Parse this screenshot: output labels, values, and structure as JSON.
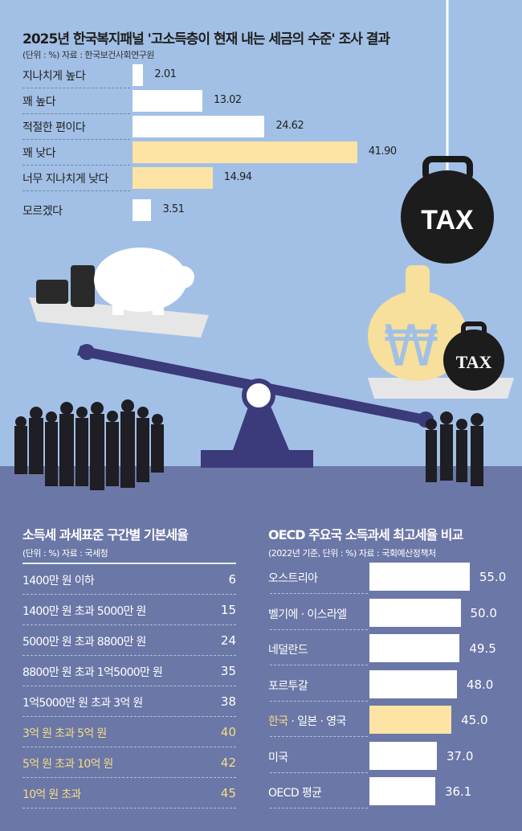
{
  "colors": {
    "top_bg": "#a2c0e6",
    "bottom_bg": "#6b77a6",
    "bar_white": "#ffffff",
    "bar_highlight": "#fde3a4",
    "text_highlight": "#f6dc86"
  },
  "illustration": {
    "weight_label": "TAX",
    "small_weight_label": "TAX",
    "money_bag_symbol": "₩"
  },
  "chart_data": [
    {
      "type": "bar",
      "orientation": "horizontal",
      "title": "2025년 한국복지패널  '고소득층이 현재 내는 세금의 수준' 조사 결과",
      "subtitle": "(단위 : %)  자료 : 한국보건사회연구원",
      "categories": [
        "지나치게 높다",
        "꽤 높다",
        "적절한 편이다",
        "꽤 낮다",
        "너무 지나치게 낮다",
        "모르겠다"
      ],
      "values": [
        2.01,
        13.02,
        24.62,
        41.9,
        14.94,
        3.51
      ],
      "labels": [
        "2.01",
        "13.02",
        "24.62",
        "41.90",
        "14.94",
        "3.51"
      ],
      "highlighted": [
        false,
        false,
        false,
        true,
        true,
        false
      ],
      "xlim": [
        0,
        45
      ]
    },
    {
      "type": "table",
      "title": "소득세 과세표준 구간별 기본세율",
      "subtitle": "(단위 : %)  자료 : 국세청",
      "rows": [
        {
          "bracket": "1400만 원 이하",
          "rate": "6",
          "highlighted": false
        },
        {
          "bracket": "1400만 원 초과 5000만 원",
          "rate": "15",
          "highlighted": false
        },
        {
          "bracket": "5000만 원 초과 8800만 원",
          "rate": "24",
          "highlighted": false
        },
        {
          "bracket": "8800만 원 초과 1억5000만 원",
          "rate": "35",
          "highlighted": false
        },
        {
          "bracket": "1억5000만 원 초과 3억 원",
          "rate": "38",
          "highlighted": false
        },
        {
          "bracket": "3억 원 초과 5억 원",
          "rate": "40",
          "highlighted": true
        },
        {
          "bracket": "5억 원 초과 10억 원",
          "rate": "42",
          "highlighted": true
        },
        {
          "bracket": "10억 원 초과",
          "rate": "45",
          "highlighted": true
        }
      ]
    },
    {
      "type": "bar",
      "orientation": "horizontal",
      "title": "OECD 주요국 소득과세 최고세율 비교",
      "subtitle": "(2022년 기준, 단위 : %)  자료 : 국회예산정책처",
      "categories": [
        "오스트리아",
        "벨기에 · 이스라엘",
        "네덜란드",
        "포르투갈",
        "한국 · 일본 · 영국",
        "미국",
        "OECD 평균"
      ],
      "values": [
        55.0,
        50.0,
        49.5,
        48.0,
        45.0,
        37.0,
        36.1
      ],
      "labels": [
        "55.0",
        "50.0",
        "49.5",
        "48.0",
        "45.0",
        "37.0",
        "36.1"
      ],
      "highlighted": [
        false,
        false,
        false,
        false,
        true,
        false,
        false
      ],
      "xlim": [
        0,
        60
      ]
    }
  ]
}
